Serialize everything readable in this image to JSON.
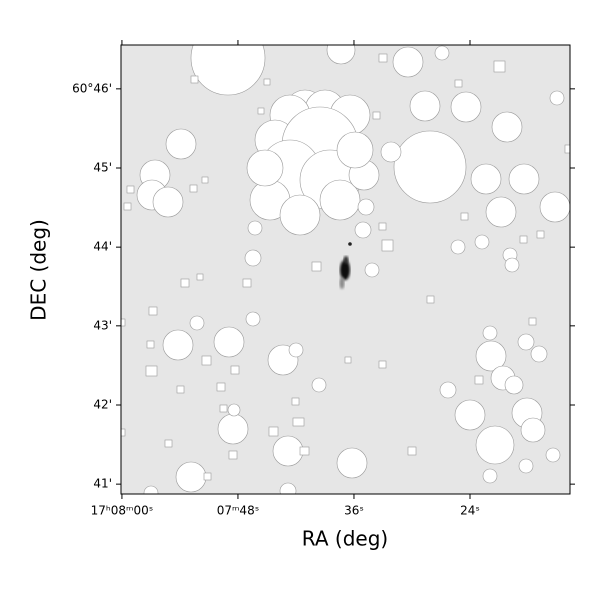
{
  "chart_data": {
    "type": "image",
    "xlabel": "RA (deg)",
    "ylabel": "DEC (deg)",
    "xlim": [
      257.0004,
      256.8069
    ],
    "ylim": [
      60.68122,
      60.77595
    ],
    "xticks": [
      {
        "value": 257.0,
        "label": "17ʰ08ᵐ00ˢ"
      },
      {
        "value": 256.95,
        "label": "07ᵐ48ˢ"
      },
      {
        "value": 256.9,
        "label": "36ˢ"
      },
      {
        "value": 256.85,
        "label": "24ˢ"
      }
    ],
    "yticks": [
      {
        "value": 60.7667,
        "label": "60°46'"
      },
      {
        "value": 60.75,
        "label": "45'"
      },
      {
        "value": 60.7333,
        "label": "44'"
      },
      {
        "value": 60.7167,
        "label": "43'"
      },
      {
        "value": 60.7,
        "label": "42'"
      },
      {
        "value": 60.6833,
        "label": "41'"
      }
    ]
  }
}
